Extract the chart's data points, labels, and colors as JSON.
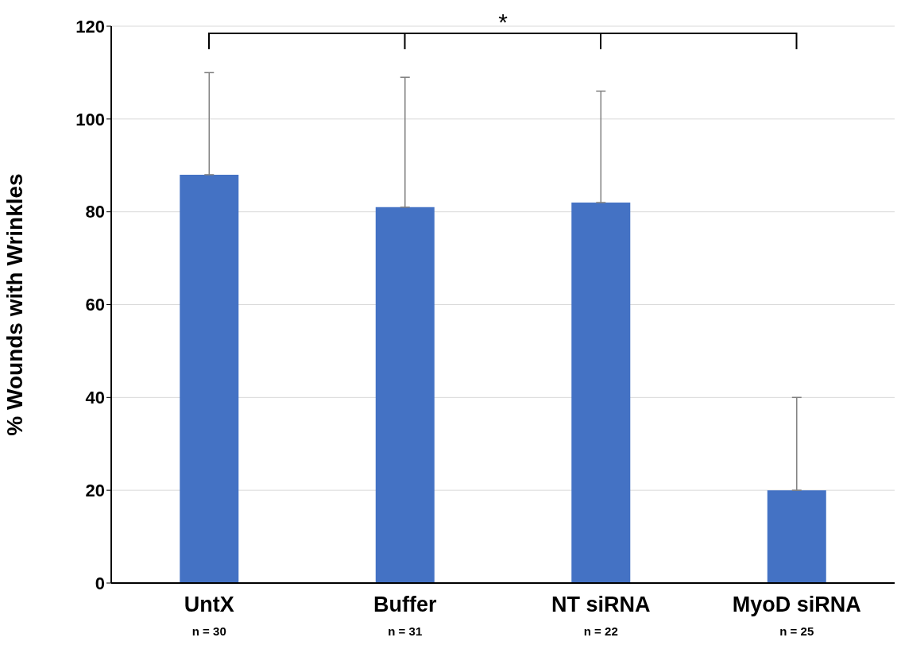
{
  "chart_data": {
    "type": "bar",
    "ylabel": "% Wounds with Wrinkles",
    "categories": [
      "UntX",
      "Buffer",
      "NT siRNA",
      "MyoD siRNA"
    ],
    "values": [
      88,
      81,
      82,
      20
    ],
    "errors": [
      [
        88,
        110
      ],
      [
        81,
        109
      ],
      [
        82,
        106
      ],
      [
        20,
        40
      ]
    ],
    "color": "#4472c4",
    "ylim": [
      0,
      120
    ],
    "yticks": [
      0,
      20,
      40,
      60,
      80,
      100,
      120
    ],
    "grid": "y",
    "annotations": [
      "*",
      "n = 30",
      "n = 31",
      "n = 22",
      "n = 25"
    ]
  }
}
